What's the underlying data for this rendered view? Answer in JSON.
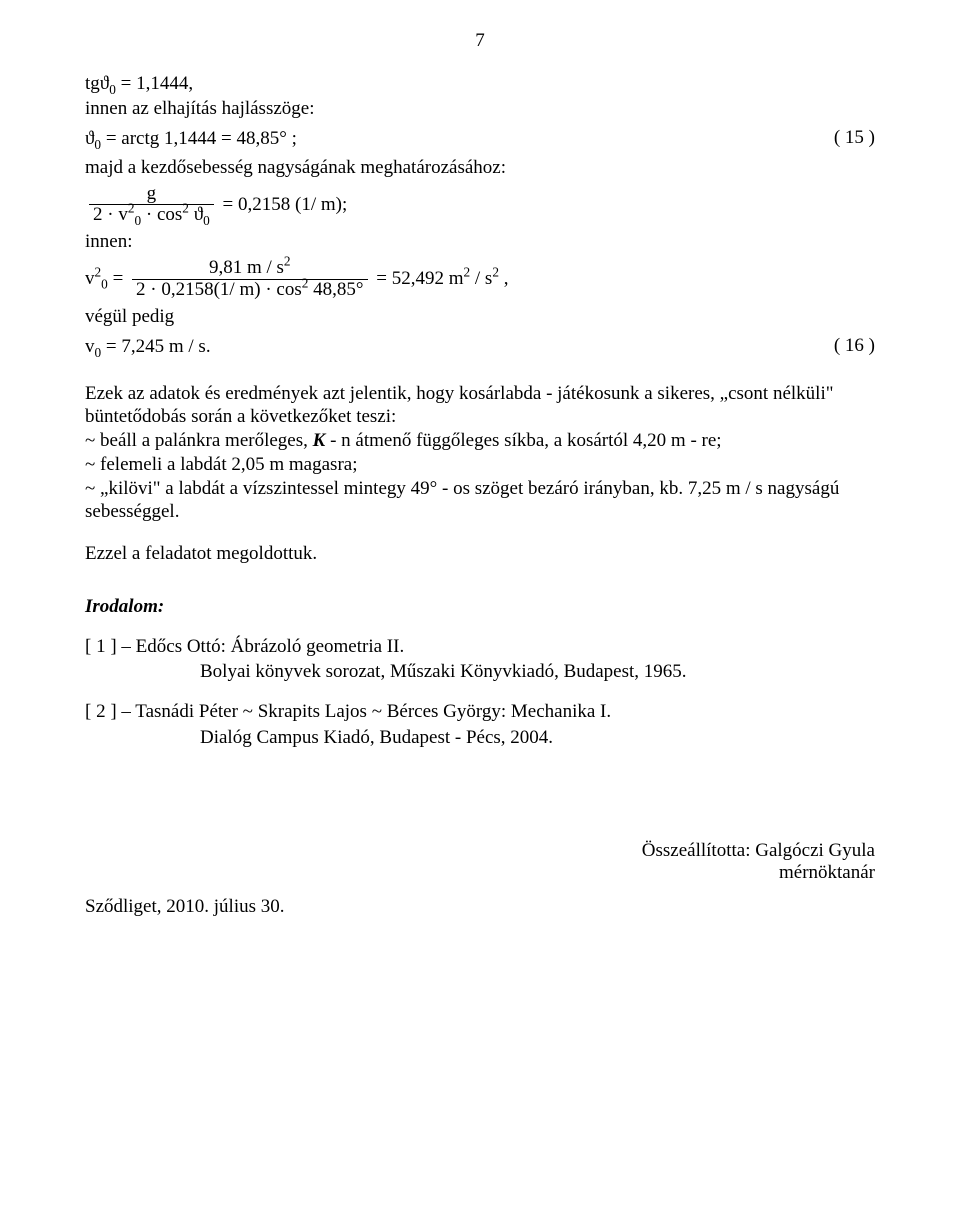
{
  "pageNumber": "7",
  "eq1_lhs_pre": "tg",
  "eq1_lhs_var": "ϑ",
  "eq1_lhs_sub": "0",
  "eq1_rhs": " = 1,1444,",
  "line2": "innen az elhajítás hajlásszöge:",
  "eq2_lhs_var": "ϑ",
  "eq2_lhs_sub": "0",
  "eq2_rhs": " = arctg 1,1444 = 48,85° ;",
  "eq2_tag": "( 15 )",
  "line4": "majd a kezdősebesség nagyságának meghatározásához:",
  "frac1_num": "g",
  "frac1_den_a": "2 · v",
  "frac1_den_b_sup": "2",
  "frac1_den_b_sub": "0",
  "frac1_den_c": " · cos",
  "frac1_den_c_sup": "2",
  "frac1_den_d": " ϑ",
  "frac1_den_d_sub": "0",
  "frac1_rhs": " = 0,2158 (1/ m);",
  "line6": "innen:",
  "eq4_lhs_a": "v",
  "eq4_lhs_sup": "2",
  "eq4_lhs_sub": "0",
  "eq4_eq": " = ",
  "frac2_num_a": "9,81 m / s",
  "frac2_num_sup": "2",
  "frac2_den_a": "2 · 0,2158(1/ m) · cos",
  "frac2_den_sup": "2",
  "frac2_den_b": " 48,85°",
  "eq4_rhs_a": " = 52,492 m",
  "eq4_rhs_sup1": "2",
  "eq4_rhs_b": " / s",
  "eq4_rhs_sup2": "2",
  "eq4_rhs_c": " ,",
  "line8": "végül pedig",
  "eq5_lhs_a": "v",
  "eq5_lhs_sub": "0",
  "eq5_rhs": " = 7,245 m / s.",
  "eq5_tag": "( 16 )",
  "para1": "Ezek az adatok és eredmények azt jelentik, hogy kosárlabda - játékosunk a sikeres, „csont nélküli\" büntetődobás során a következőket teszi:",
  "para2_a": "~ beáll a palánkra merőleges, ",
  "para2_b_italicbold": "K",
  "para2_c": " - n átmenő függőleges síkba, a kosártól 4,20 m - re;",
  "para3": "~ felemeli a labdát 2,05 m magasra;",
  "para4": "~ „kilövi\" a labdát a vízszintessel mintegy 49° - os szöget bezáró irányban, kb. 7,25 m / s nagyságú sebességgel.",
  "para5": "Ezzel a feladatot megoldottuk.",
  "refs_heading": "Irodalom:",
  "ref1_line1": "[ 1 ] – Edőcs Ottó: Ábrázoló geometria II.",
  "ref1_line2": "Bolyai könyvek sorozat, Műszaki Könyvkiadó, Budapest, 1965.",
  "ref2_line1": "[ 2 ] – Tasnádi Péter ~ Skrapits Lajos ~ Bérces György: Mechanika I.",
  "ref2_line2": "Dialóg Campus Kiadó, Budapest - Pécs, 2004.",
  "composed_by": "Összeállította: Galgóczi Gyula",
  "title_person": "mérnöktanár",
  "place_date": "Sződliget, 2010. július 30."
}
